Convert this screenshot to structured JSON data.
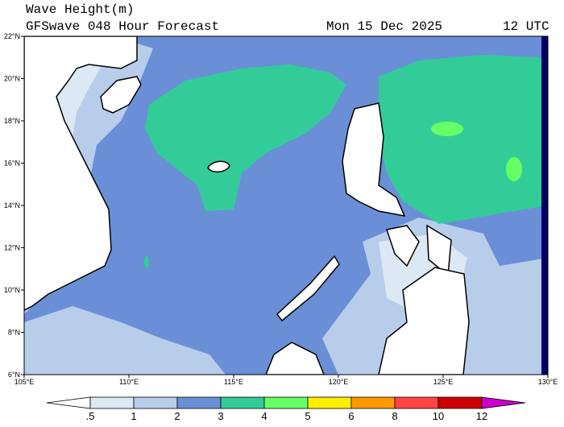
{
  "header": {
    "title": "Wave Height(m)",
    "subtitle": "GFSwave 048 Hour Forecast",
    "date": "Mon 15 Dec 2025",
    "time": "12 UTC"
  },
  "map": {
    "lat_labels": [
      "22°N",
      "20°N",
      "18°N",
      "16°N",
      "14°N",
      "12°N",
      "10°N",
      "8°N",
      "6°N"
    ],
    "lon_labels": [
      "105°E",
      "110°E",
      "115°E",
      "120°E",
      "125°E",
      "130°E"
    ]
  },
  "colorbar": {
    "labels": [
      ".5",
      "1",
      "2",
      "3",
      "4",
      "5",
      "6",
      "8",
      "10",
      "12"
    ]
  }
}
